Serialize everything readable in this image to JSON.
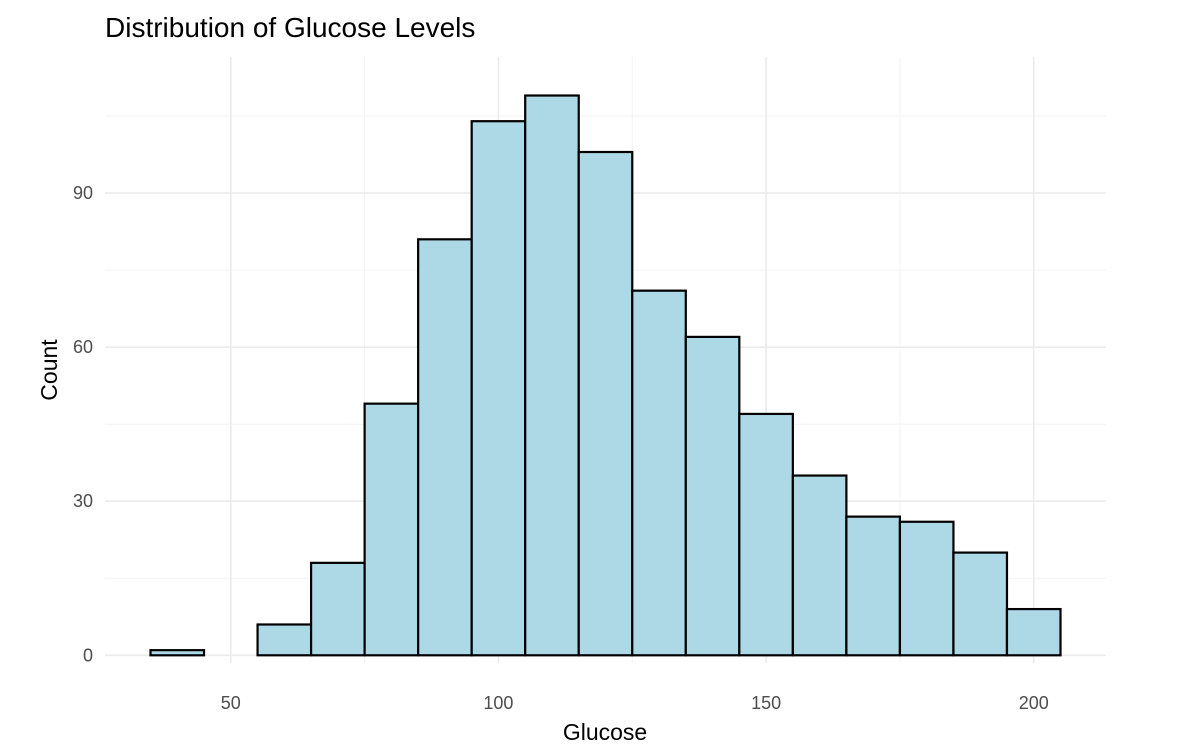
{
  "chart_data": {
    "type": "bar",
    "title": "Distribution of Glucose Levels",
    "xlabel": "Glucose",
    "ylabel": "Count",
    "bin_width": 10,
    "bins": [
      {
        "x0": 35,
        "x1": 45,
        "count": 1
      },
      {
        "x0": 45,
        "x1": 55,
        "count": 0
      },
      {
        "x0": 55,
        "x1": 65,
        "count": 6
      },
      {
        "x0": 65,
        "x1": 75,
        "count": 18
      },
      {
        "x0": 75,
        "x1": 85,
        "count": 49
      },
      {
        "x0": 85,
        "x1": 95,
        "count": 81
      },
      {
        "x0": 95,
        "x1": 105,
        "count": 104
      },
      {
        "x0": 105,
        "x1": 115,
        "count": 109
      },
      {
        "x0": 115,
        "x1": 125,
        "count": 98
      },
      {
        "x0": 125,
        "x1": 135,
        "count": 71
      },
      {
        "x0": 135,
        "x1": 145,
        "count": 62
      },
      {
        "x0": 145,
        "x1": 155,
        "count": 47
      },
      {
        "x0": 155,
        "x1": 165,
        "count": 35
      },
      {
        "x0": 165,
        "x1": 175,
        "count": 27
      },
      {
        "x0": 175,
        "x1": 185,
        "count": 26
      },
      {
        "x0": 185,
        "x1": 195,
        "count": 20
      },
      {
        "x0": 195,
        "x1": 205,
        "count": 9
      }
    ],
    "xlim": [
      26.5,
      213.5
    ],
    "ylim": [
      -1.5,
      116.5
    ],
    "x_ticks": [
      50,
      100,
      150,
      200
    ],
    "y_ticks": [
      0,
      30,
      60,
      90
    ],
    "grid": true,
    "bar_fill": "#add8e6",
    "bar_outline": "#000000"
  }
}
